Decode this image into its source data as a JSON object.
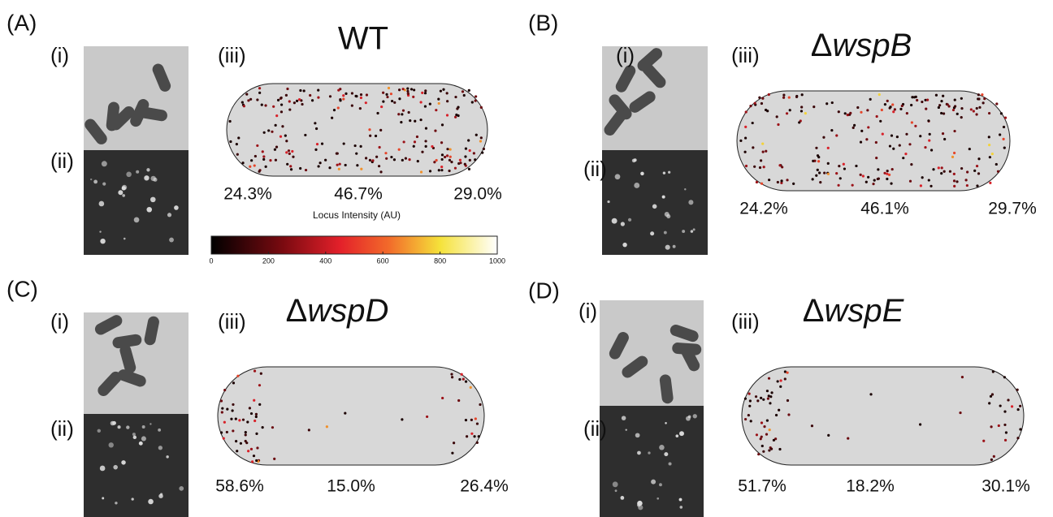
{
  "panels": [
    {
      "label": "(A)",
      "title": "WT",
      "image_labels": [
        "(i)",
        "(ii)"
      ],
      "plot_label": "(iii)",
      "percentages": [
        "24.3%",
        "46.7%",
        "29.0%"
      ]
    },
    {
      "label": "(B)",
      "title": {
        "prefix": "Δ",
        "gene": "wspB"
      },
      "image_labels": [
        "(i)",
        "(ii)"
      ],
      "plot_label": "(iii)",
      "percentages": [
        "24.2%",
        "46.1%",
        "29.7%"
      ]
    },
    {
      "label": "(C)",
      "title": {
        "prefix": "Δ",
        "gene": "wspD"
      },
      "image_labels": [
        "(i)",
        "(ii)"
      ],
      "plot_label": "(iii)",
      "percentages": [
        "58.6%",
        "15.0%",
        "26.4%"
      ]
    },
    {
      "label": "(D)",
      "title": {
        "prefix": "Δ",
        "gene": "wspE"
      },
      "image_labels": [
        "(i)",
        "(ii)"
      ],
      "plot_label": "(iii)",
      "percentages": [
        "51.7%",
        "18.2%",
        "30.1%"
      ]
    }
  ],
  "colorbar": {
    "label": "Locus Intensity (AU)",
    "ticks": [
      0,
      200,
      400,
      600,
      800,
      1000
    ]
  }
}
